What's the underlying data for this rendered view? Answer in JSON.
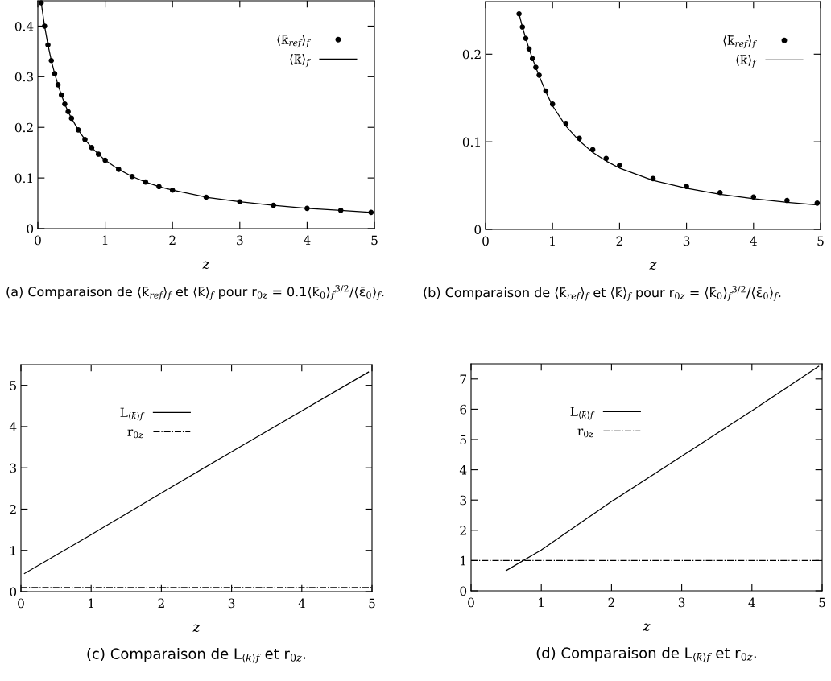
{
  "chart_data": [
    {
      "type": "line",
      "xlabel": "z",
      "xlim": [
        0,
        5
      ],
      "xticks": [
        0,
        1,
        2,
        3,
        4,
        5
      ],
      "ylim": [
        0,
        0.45
      ],
      "yticks": [
        0,
        0.1,
        0.2,
        0.3,
        0.4
      ],
      "legend": "top right",
      "grid": false,
      "annotations": [
        "(a) Comparaison de ⟨k̄$_{ref}$⟩$_{f}$ et ⟨k̄⟩$_{f}$ pour r$_{0z}$ = 0.1⟨k̄$_{0}$⟩$_{f}$$^{3/2}$/⟨ε̄$_{0}$⟩$_{f}$."
      ],
      "series": [
        {
          "name": "⟨k̄$_{ref}$⟩$_{f}$",
          "type": "scatter",
          "marker": "circle",
          "color": "#000000",
          "x": [
            0.05,
            0.1,
            0.15,
            0.2,
            0.25,
            0.3,
            0.35,
            0.4,
            0.45,
            0.5,
            0.6,
            0.7,
            0.8,
            0.9,
            1.0,
            1.2,
            1.4,
            1.6,
            1.8,
            2.0,
            2.5,
            3.0,
            3.5,
            4.0,
            4.5,
            4.95
          ],
          "values": [
            0.446,
            0.4,
            0.363,
            0.332,
            0.306,
            0.284,
            0.264,
            0.246,
            0.231,
            0.218,
            0.195,
            0.176,
            0.16,
            0.147,
            0.135,
            0.117,
            0.103,
            0.092,
            0.083,
            0.076,
            0.062,
            0.053,
            0.046,
            0.04,
            0.036,
            0.032
          ]
        },
        {
          "name": "⟨k̄⟩$_{f}$",
          "line_style": "solid",
          "color": "#000000",
          "x": [
            0.05,
            0.1,
            0.15,
            0.2,
            0.25,
            0.3,
            0.35,
            0.4,
            0.45,
            0.5,
            0.6,
            0.7,
            0.8,
            0.9,
            1.0,
            1.2,
            1.4,
            1.6,
            1.8,
            2.0,
            2.5,
            3.0,
            3.5,
            4.0,
            4.5,
            4.95
          ],
          "values": [
            0.446,
            0.4,
            0.363,
            0.332,
            0.306,
            0.284,
            0.264,
            0.246,
            0.231,
            0.218,
            0.195,
            0.176,
            0.16,
            0.147,
            0.135,
            0.117,
            0.103,
            0.092,
            0.083,
            0.076,
            0.062,
            0.053,
            0.046,
            0.04,
            0.036,
            0.032
          ]
        }
      ]
    },
    {
      "type": "line",
      "xlabel": "z",
      "xlim": [
        0,
        5
      ],
      "xticks": [
        0,
        1,
        2,
        3,
        4,
        5
      ],
      "ylim": [
        0,
        0.26
      ],
      "yticks": [
        0,
        0.1,
        0.2
      ],
      "legend": "top right",
      "grid": false,
      "annotations": [
        "(b) Comparaison de ⟨k̄$_{ref}$⟩$_{f}$ et ⟨k̄⟩$_{f}$ pour r$_{0z}$ = ⟨k̄$_{0}$⟩$_{f}$$^{3/2}$/⟨ε̄$_{0}$⟩$_{f}$."
      ],
      "series": [
        {
          "name": "⟨k̄$_{ref}$⟩$_{f}$",
          "type": "scatter",
          "marker": "circle",
          "color": "#000000",
          "x": [
            0.5,
            0.55,
            0.6,
            0.65,
            0.7,
            0.75,
            0.8,
            0.9,
            1.0,
            1.2,
            1.4,
            1.6,
            1.8,
            2.0,
            2.5,
            3.0,
            3.5,
            4.0,
            4.5,
            4.95
          ],
          "values": [
            0.246,
            0.231,
            0.218,
            0.206,
            0.195,
            0.185,
            0.176,
            0.158,
            0.143,
            0.121,
            0.104,
            0.091,
            0.081,
            0.073,
            0.058,
            0.049,
            0.042,
            0.037,
            0.033,
            0.03
          ]
        },
        {
          "name": "⟨k̄⟩$_{f}$",
          "line_style": "solid",
          "color": "#000000",
          "x": [
            0.5,
            0.55,
            0.6,
            0.65,
            0.7,
            0.75,
            0.8,
            0.9,
            1.0,
            1.2,
            1.4,
            1.6,
            1.8,
            2.0,
            2.5,
            3.0,
            3.5,
            4.0,
            4.5,
            4.95
          ],
          "values": [
            0.246,
            0.231,
            0.218,
            0.206,
            0.195,
            0.185,
            0.175,
            0.157,
            0.141,
            0.118,
            0.101,
            0.088,
            0.078,
            0.07,
            0.056,
            0.047,
            0.04,
            0.035,
            0.031,
            0.028
          ]
        }
      ]
    },
    {
      "type": "line",
      "xlabel": "z",
      "xlim": [
        0,
        5
      ],
      "xticks": [
        0,
        1,
        2,
        3,
        4,
        5
      ],
      "ylim": [
        0,
        5.5
      ],
      "yticks": [
        0,
        1,
        2,
        3,
        4,
        5
      ],
      "legend": "top left",
      "grid": false,
      "annotations": [
        "(c) Comparaison de L$_{⟨k̄⟩f}$ et r$_{0z}$."
      ],
      "series": [
        {
          "name": "L$_{⟨k̄⟩f}$",
          "line_style": "solid",
          "color": "#000000",
          "x": [
            0.05,
            1,
            2,
            3,
            4.95
          ],
          "values": [
            0.44,
            1.38,
            2.39,
            3.39,
            5.32
          ]
        },
        {
          "name": "r$_{0z}$",
          "line_style": "dashdot",
          "color": "#000000",
          "x": [
            0,
            5
          ],
          "values": [
            0.1,
            0.1
          ]
        }
      ]
    },
    {
      "type": "line",
      "xlabel": "z",
      "xlim": [
        0,
        5
      ],
      "xticks": [
        0,
        1,
        2,
        3,
        4,
        5
      ],
      "ylim": [
        0,
        7.5
      ],
      "yticks": [
        0,
        1,
        2,
        3,
        4,
        5,
        6,
        7
      ],
      "legend": "top left",
      "grid": false,
      "annotations": [
        "(d) Comparaison de L$_{⟨k̄⟩f}$ et r$_{0z}$."
      ],
      "series": [
        {
          "name": "L$_{⟨k̄⟩f}$",
          "line_style": "solid",
          "color": "#000000",
          "x": [
            0.5,
            1,
            2,
            3,
            4,
            4.95
          ],
          "values": [
            0.67,
            1.35,
            2.95,
            4.45,
            5.95,
            7.42
          ]
        },
        {
          "name": "r$_{0z}$",
          "line_style": "dashdot",
          "color": "#000000",
          "x": [
            0,
            5
          ],
          "values": [
            1,
            1
          ]
        }
      ]
    }
  ]
}
